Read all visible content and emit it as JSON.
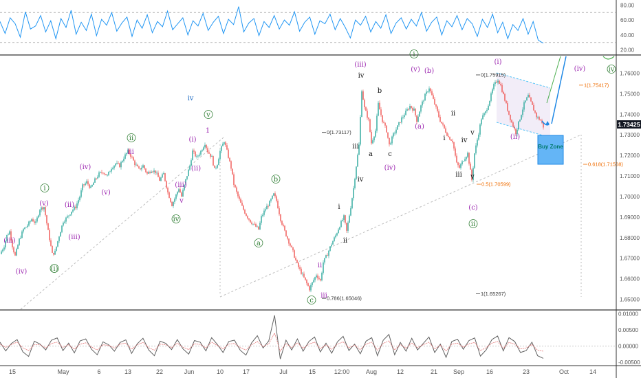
{
  "chart_data": [
    {
      "type": "line",
      "panel": "RSI",
      "series": [
        {
          "values": [
            58,
            42,
            63,
            55,
            37,
            71,
            48,
            52,
            66,
            44,
            59,
            35,
            62,
            50,
            73,
            41,
            57,
            46,
            68,
            39,
            61,
            53,
            70,
            45,
            56,
            64,
            38,
            60,
            49,
            67,
            43,
            58,
            51,
            72,
            47,
            55,
            63,
            40,
            59,
            52,
            69,
            46,
            57,
            65,
            42,
            61,
            54,
            78,
            44,
            56,
            62,
            39,
            58,
            50,
            66,
            48,
            60,
            53,
            71,
            45,
            57,
            64,
            41,
            59,
            55,
            68,
            47,
            62,
            50,
            36,
            60,
            53,
            65,
            44,
            58,
            49,
            67,
            42,
            56,
            63,
            48,
            61,
            52,
            70,
            45,
            57,
            64,
            40,
            59,
            51,
            66,
            47,
            62,
            55,
            38,
            61,
            50,
            68,
            43,
            57,
            35,
            54,
            46,
            62,
            41,
            58,
            33,
            29
          ]
        }
      ],
      "ylim": [
        15,
        85
      ],
      "yticks": [
        "80.00",
        "60.00",
        "40.00",
        "20.00"
      ],
      "guides": [
        70,
        30
      ]
    },
    {
      "type": "candlestick",
      "panel": "price",
      "x_labels": [
        "15",
        "May",
        "6",
        "13",
        "22",
        "Jun",
        "10",
        "17",
        "Jul",
        "15",
        "12:00",
        "Aug",
        "12",
        "21",
        "Sep",
        "16",
        "23",
        "Oct",
        "14",
        "23"
      ],
      "yticks": [
        "1.76000",
        "1.75000",
        "1.74000",
        "1.73000",
        "1.72000",
        "1.71000",
        "1.70000",
        "1.69000",
        "1.68000",
        "1.67000",
        "1.66000",
        "1.65000"
      ],
      "ylim": [
        1.6465,
        1.7675
      ],
      "current_price": "1.73425",
      "close_path": [
        [
          0,
          1.672
        ],
        [
          6,
          1.676
        ],
        [
          10,
          1.681
        ],
        [
          14,
          1.683
        ],
        [
          18,
          1.676
        ],
        [
          22,
          1.671
        ],
        [
          28,
          1.679
        ],
        [
          34,
          1.684
        ],
        [
          40,
          1.686
        ],
        [
          46,
          1.689
        ],
        [
          52,
          1.687
        ],
        [
          58,
          1.694
        ],
        [
          64,
          1.695
        ],
        [
          70,
          1.683
        ],
        [
          76,
          1.672
        ],
        [
          80,
          1.673
        ],
        [
          86,
          1.681
        ],
        [
          92,
          1.688
        ],
        [
          98,
          1.69
        ],
        [
          104,
          1.693
        ],
        [
          110,
          1.695
        ],
        [
          116,
          1.7
        ],
        [
          120,
          1.705
        ],
        [
          126,
          1.707
        ],
        [
          132,
          1.704
        ],
        [
          138,
          1.708
        ],
        [
          144,
          1.711
        ],
        [
          150,
          1.712
        ],
        [
          156,
          1.71
        ],
        [
          162,
          1.714
        ],
        [
          168,
          1.716
        ],
        [
          174,
          1.715
        ],
        [
          180,
          1.719
        ],
        [
          186,
          1.722
        ],
        [
          190,
          1.72
        ],
        [
          196,
          1.716
        ],
        [
          202,
          1.713
        ],
        [
          208,
          1.715
        ],
        [
          214,
          1.711
        ],
        [
          220,
          1.713
        ],
        [
          226,
          1.712
        ],
        [
          232,
          1.708
        ],
        [
          238,
          1.711
        ],
        [
          244,
          1.702
        ],
        [
          250,
          1.696
        ],
        [
          254,
          1.699
        ],
        [
          260,
          1.704
        ],
        [
          264,
          1.7
        ],
        [
          270,
          1.708
        ],
        [
          276,
          1.715
        ],
        [
          280,
          1.722
        ],
        [
          286,
          1.719
        ],
        [
          292,
          1.722
        ],
        [
          298,
          1.726
        ],
        [
          302,
          1.722
        ],
        [
          308,
          1.719
        ],
        [
          312,
          1.713
        ],
        [
          316,
          1.716
        ],
        [
          320,
          1.722
        ],
        [
          326,
          1.727
        ],
        [
          330,
          1.722
        ],
        [
          336,
          1.714
        ],
        [
          340,
          1.706
        ],
        [
          346,
          1.7
        ],
        [
          352,
          1.695
        ],
        [
          358,
          1.691
        ],
        [
          364,
          1.688
        ],
        [
          370,
          1.686
        ],
        [
          376,
          1.684
        ],
        [
          380,
          1.69
        ],
        [
          386,
          1.694
        ],
        [
          392,
          1.697
        ],
        [
          398,
          1.701
        ],
        [
          402,
          1.698
        ],
        [
          408,
          1.689
        ],
        [
          414,
          1.683
        ],
        [
          420,
          1.678
        ],
        [
          426,
          1.673
        ],
        [
          432,
          1.667
        ],
        [
          438,
          1.663
        ],
        [
          444,
          1.659
        ],
        [
          450,
          1.655
        ],
        [
          454,
          1.658
        ],
        [
          460,
          1.662
        ],
        [
          466,
          1.659
        ],
        [
          470,
          1.668
        ],
        [
          476,
          1.672
        ],
        [
          482,
          1.677
        ],
        [
          488,
          1.681
        ],
        [
          494,
          1.686
        ],
        [
          500,
          1.69
        ],
        [
          504,
          1.683
        ],
        [
          510,
          1.695
        ],
        [
          514,
          1.704
        ],
        [
          518,
          1.715
        ],
        [
          522,
          1.725
        ],
        [
          526,
          1.752
        ],
        [
          530,
          1.743
        ],
        [
          536,
          1.737
        ],
        [
          540,
          1.726
        ],
        [
          546,
          1.732
        ],
        [
          550,
          1.745
        ],
        [
          556,
          1.737
        ],
        [
          562,
          1.732
        ],
        [
          566,
          1.725
        ],
        [
          572,
          1.73
        ],
        [
          578,
          1.734
        ],
        [
          584,
          1.738
        ],
        [
          590,
          1.741
        ],
        [
          596,
          1.744
        ],
        [
          602,
          1.742
        ],
        [
          606,
          1.737
        ],
        [
          612,
          1.744
        ],
        [
          618,
          1.749
        ],
        [
          624,
          1.753
        ],
        [
          628,
          1.749
        ],
        [
          634,
          1.743
        ],
        [
          640,
          1.737
        ],
        [
          646,
          1.733
        ],
        [
          652,
          1.729
        ],
        [
          658,
          1.727
        ],
        [
          664,
          1.716
        ],
        [
          668,
          1.714
        ],
        [
          674,
          1.718
        ],
        [
          680,
          1.721
        ],
        [
          686,
          1.708
        ],
        [
          690,
          1.721
        ],
        [
          696,
          1.731
        ],
        [
          700,
          1.738
        ],
        [
          706,
          1.741
        ],
        [
          712,
          1.747
        ],
        [
          718,
          1.754
        ],
        [
          724,
          1.757
        ],
        [
          728,
          1.754
        ],
        [
          734,
          1.747
        ],
        [
          740,
          1.74
        ],
        [
          744,
          1.736
        ],
        [
          750,
          1.731
        ],
        [
          756,
          1.738
        ],
        [
          762,
          1.745
        ],
        [
          768,
          1.749
        ],
        [
          774,
          1.744
        ],
        [
          780,
          1.739
        ],
        [
          786,
          1.737
        ],
        [
          790,
          1.734
        ]
      ],
      "fib_levels": [
        {
          "label": "0(1.75915)",
          "value": 1.75915
        },
        {
          "label": "0(1.73117)",
          "value": 1.73117
        },
        {
          "label": "0.5(1.70599)",
          "value": 1.70599
        },
        {
          "label": "0.618(1.71568)",
          "value": 1.71568
        },
        {
          "label": "0.786(1.65046)",
          "value": 1.65046
        },
        {
          "label": "1(1.65267)",
          "value": 1.65267
        },
        {
          "label": "1(1.75417)",
          "value": 1.75417
        }
      ],
      "annotations": {
        "buy_zone": "Buy Zone",
        "wave_labels": [
          "(iii)",
          "(iv)",
          "i",
          "(v)",
          "(i)",
          "(ii)",
          "(iii)",
          "(iv)",
          "(v)",
          "ii",
          "iii",
          "iv",
          "v",
          "1",
          "(i)",
          "(ii)",
          "(iii)",
          "iv",
          "v",
          "a",
          "b",
          "c",
          "(iii)",
          "a",
          "b",
          "c",
          "(iv)",
          "(v)",
          "(a)",
          "(b)",
          "i",
          "ii",
          "iii",
          "iv",
          "v",
          "(c)",
          "ii",
          "(i)",
          "(ii)",
          "(iv)",
          "iv",
          "i",
          "ii",
          "iii",
          "iv",
          "i",
          "ii",
          "iii",
          "iv",
          "v"
        ]
      }
    },
    {
      "type": "line",
      "panel": "oscillator",
      "series": [
        {
          "values": [
            0.0012,
            -0.0015,
            0.0008,
            0.002,
            -0.0018,
            -0.0032,
            0.0015,
            0.0006,
            -0.0012,
            0.0018,
            0.0025,
            -0.0014,
            0.0009,
            -0.0021,
            0.0016,
            0.0022,
            -0.001,
            -0.0027,
            0.0013,
            0.0004,
            -0.0016,
            0.0011,
            0.0019,
            -0.0023,
            0.0007,
            0.0024,
            -0.0012,
            -0.003,
            0.0015,
            0.0008,
            -0.0011,
            0.002,
            -0.0009,
            -0.0025,
            0.0017,
            0.0012,
            -0.0015,
            0.0026,
            0.0005,
            -0.002,
            0.0014,
            0.0018,
            -0.0013,
            -0.0028,
            0.001,
            0.0032,
            -0.0006,
            0.0016,
            0.0095,
            -0.004,
            0.0018,
            -0.0012,
            0.0022,
            -0.0016,
            0.0014,
            0.0028,
            -0.0018,
            0.0009,
            -0.0022,
            0.0013,
            0.003,
            -0.0014,
            0.0006,
            -0.0024,
            0.0015,
            0.0026,
            -0.003,
            0.0018,
            0.0036,
            -0.0027,
            0.0011,
            -0.0016,
            0.0024,
            -0.0012,
            0.0008,
            0.0028,
            -0.002,
            0.0006,
            -0.0035,
            0.0014,
            0.0021,
            -0.001,
            0.0017,
            0.0025,
            -0.0031,
            -0.0012,
            0.002,
            0.0031,
            -0.0015,
            0.0026,
            0.0014,
            -0.002,
            -0.0014,
            0.0012,
            -0.003,
            -0.0038
          ]
        },
        {
          "values": [
            0.0006,
            -0.0004,
            0.0005,
            0.0012,
            -0.0006,
            -0.0014,
            0.0004,
            0.0004,
            -0.0006,
            0.0008,
            0.0012,
            -0.0004,
            0.0004,
            -0.001,
            0.0006,
            0.001,
            -0.0003,
            -0.0012,
            0.0004,
            0.0002,
            -0.0006,
            0.0006,
            0.0009,
            -0.001,
            0.0004,
            0.0011,
            -0.0005,
            -0.0013,
            0.0006,
            0.0004,
            -0.0005,
            0.0009,
            -0.0004,
            -0.0011,
            0.0007,
            0.0005,
            -0.0006,
            0.0012,
            0.0002,
            -0.0009,
            0.0006,
            0.0008,
            -0.0005,
            -0.0012,
            0.0004,
            0.0014,
            -0.0002,
            0.0007,
            0.004,
            -0.0016,
            0.0008,
            -0.0005,
            0.001,
            -0.0007,
            0.0006,
            0.0012,
            -0.0008,
            0.0004,
            -0.001,
            0.0006,
            0.0013,
            -0.0006,
            0.0003,
            -0.0011,
            0.0006,
            0.0012,
            -0.0013,
            0.0008,
            0.0016,
            -0.0012,
            0.0005,
            -0.0007,
            0.001,
            -0.0005,
            0.0004,
            0.0012,
            -0.0009,
            0.0003,
            -0.0015,
            0.0006,
            0.0009,
            -0.0004,
            0.0007,
            0.0011,
            -0.0014,
            -0.0005,
            0.0009,
            0.0014,
            -0.0007,
            0.0011,
            0.0006,
            -0.0009,
            -0.0006,
            0.0005,
            -0.0013,
            -0.0016
          ]
        }
      ],
      "ylim": [
        -0.0052,
        0.0103
      ],
      "yticks": [
        "0.01000",
        "0.00500",
        "0.00000",
        "-0.00500"
      ]
    }
  ],
  "colors": {
    "rsi_line": "#2196f3",
    "up_candle": "#26a69a",
    "down_candle": "#ef5350",
    "wave_magenta": "#9c27b0",
    "wave_green": "#2e7d32",
    "buy_zone_fill": "#64b5f6",
    "price_badge": "#131722",
    "projection_green": "#4caf50",
    "projection_blue": "#1e88e5",
    "fib_orange": "#ef6c00",
    "channel_fill": "#ede7f6"
  }
}
